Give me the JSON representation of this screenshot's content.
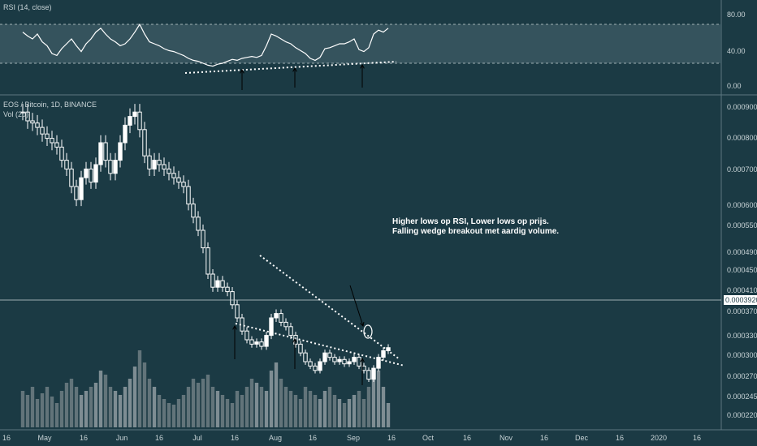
{
  "rsi_panel": {
    "title": "RSI (14, close)",
    "axis_labels": [
      "80.00",
      "40.00",
      "0.00"
    ]
  },
  "price_panel": {
    "title": "EOS / Bitcoin, 1D, BINANCE",
    "volume_label": "Vol (20)",
    "current_price": "0.0003920",
    "axis_labels": [
      "0.0009000",
      "0.0008000",
      "0.0007000",
      "0.0006000",
      "0.0005500",
      "0.0004900",
      "0.0004500",
      "0.0004100",
      "0.0003700",
      "0.0003300",
      "0.0003000",
      "0.0002700",
      "0.0002450",
      "0.0002200"
    ]
  },
  "annotation": {
    "line1": "Higher lows op RSI, Lower lows op prijs.",
    "line2": "Falling wedge breakout met aardig volume."
  },
  "time_axis": {
    "labels": [
      "16",
      "May",
      "16",
      "Jun",
      "16",
      "Jul",
      "16",
      "Aug",
      "16",
      "Sep",
      "16",
      "Oct",
      "16",
      "Nov",
      "16",
      "Dec",
      "16",
      "2020",
      "16"
    ]
  },
  "colors": {
    "background": "#1b3a44",
    "candle": "#ffffff",
    "rsi_band": "#3a5861",
    "volume_up": "#7e8d93",
    "volume_down": "#62747a"
  },
  "chart_data": {
    "type": "candlestick",
    "price_close": [
      0.00093,
      0.00091,
      0.000905,
      0.000895,
      0.00088,
      0.00087,
      0.00086,
      0.00085,
      0.00082,
      0.0008,
      0.00076,
      0.00073,
      0.00078,
      0.0008,
      0.00077,
      0.00081,
      0.00086,
      0.00082,
      0.00079,
      0.00082,
      0.00086,
      0.0009,
      0.00092,
      0.00093,
      0.00089,
      0.00083,
      0.0008,
      0.00082,
      0.00081,
      0.0008,
      0.00079,
      0.00078,
      0.00077,
      0.00076,
      0.00072,
      0.00069,
      0.00066,
      0.00062,
      0.00056,
      0.00053,
      0.000545,
      0.00053,
      0.00052,
      0.00049,
      0.00046,
      0.00043,
      0.00041,
      0.0004,
      0.000405,
      0.000395,
      0.00042,
      0.00046,
      0.00047,
      0.00045,
      0.00044,
      0.00042,
      0.0004,
      0.00038,
      0.00036,
      0.00035,
      0.00034,
      0.00036,
      0.00038,
      0.00037,
      0.00036,
      0.000365,
      0.000355,
      0.00036,
      0.00037,
      0.00035,
      0.00034,
      0.00032,
      0.000345,
      0.00037,
      0.000385,
      0.000392
    ],
    "volume": [
      0.45,
      0.4,
      0.5,
      0.35,
      0.42,
      0.5,
      0.38,
      0.3,
      0.45,
      0.55,
      0.6,
      0.5,
      0.4,
      0.45,
      0.5,
      0.55,
      0.7,
      0.65,
      0.5,
      0.45,
      0.4,
      0.5,
      0.6,
      0.75,
      0.95,
      0.8,
      0.6,
      0.5,
      0.4,
      0.35,
      0.3,
      0.28,
      0.35,
      0.4,
      0.5,
      0.6,
      0.55,
      0.6,
      0.65,
      0.5,
      0.45,
      0.4,
      0.35,
      0.3,
      0.45,
      0.4,
      0.5,
      0.6,
      0.55,
      0.5,
      0.45,
      0.7,
      0.8,
      0.6,
      0.5,
      0.45,
      0.4,
      0.35,
      0.5,
      0.45,
      0.4,
      0.35,
      0.45,
      0.5,
      0.4,
      0.35,
      0.3,
      0.35,
      0.4,
      0.45,
      0.35,
      0.5,
      0.6,
      0.7,
      0.5,
      0.3
    ],
    "rsi": [
      62,
      58,
      55,
      60,
      52,
      48,
      40,
      38,
      45,
      50,
      55,
      48,
      42,
      50,
      55,
      62,
      66,
      60,
      55,
      52,
      48,
      50,
      55,
      62,
      70,
      60,
      52,
      50,
      48,
      45,
      43,
      42,
      40,
      38,
      35,
      33,
      32,
      30,
      28,
      27,
      29,
      30,
      32,
      34,
      33,
      35,
      36,
      37,
      36,
      38,
      48,
      60,
      58,
      55,
      52,
      50,
      46,
      43,
      40,
      35,
      33,
      36,
      45,
      46,
      48,
      50,
      50,
      52,
      55,
      44,
      42,
      46,
      60,
      64,
      62,
      66
    ],
    "rsi_levels": [
      70,
      30
    ],
    "rsi_ylim": [
      0,
      90
    ],
    "price_ylim": [
      0.00021,
      0.00096
    ]
  }
}
